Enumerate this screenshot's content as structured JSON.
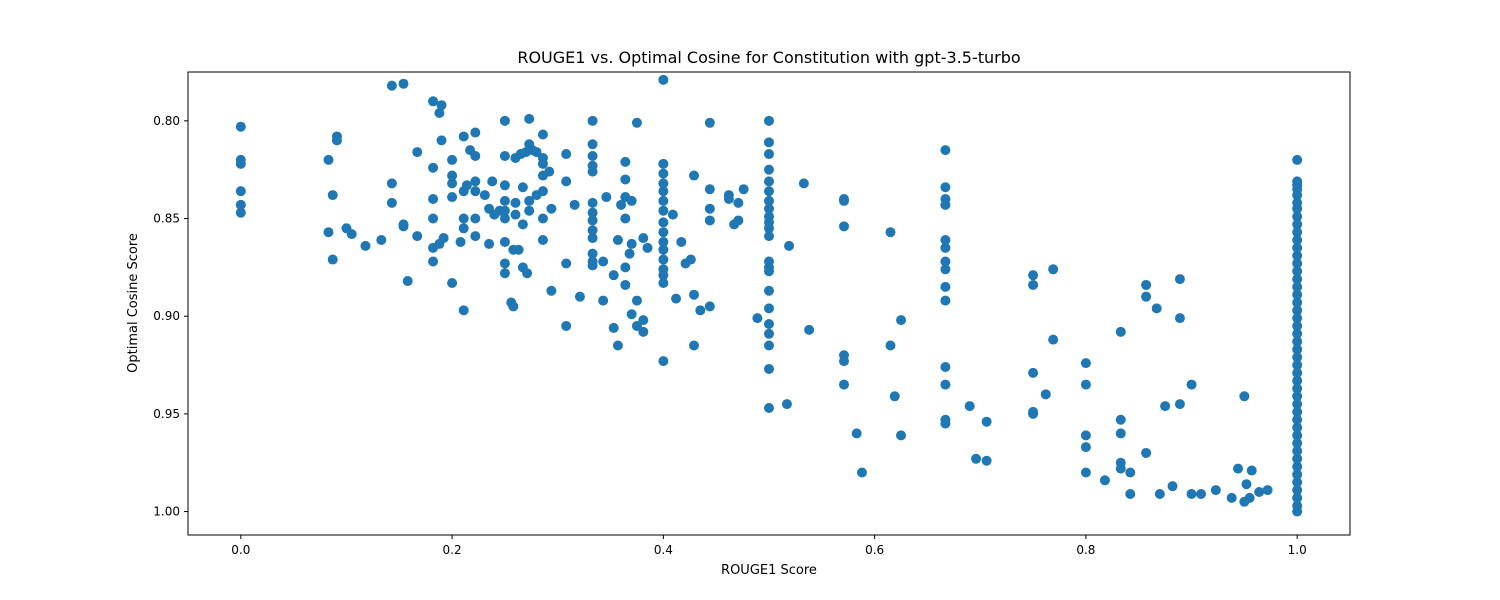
{
  "chart_data": {
    "type": "scatter",
    "title": "ROUGE1 vs. Optimal Cosine for Constitution with gpt-3.5-turbo",
    "xlabel": "ROUGE1 Score",
    "ylabel": "Optimal Cosine Score",
    "xlim": [
      -0.05,
      1.05
    ],
    "ylim": [
      0.775,
      1.012
    ],
    "y_inverted": true,
    "grid": false,
    "legend": "none",
    "marker_color": "#1f77b4",
    "xticks": [
      0.0,
      0.2,
      0.4,
      0.6,
      0.8,
      1.0
    ],
    "xtick_labels": [
      "0.0",
      "0.2",
      "0.4",
      "0.6",
      "0.8",
      "1.0"
    ],
    "yticks": [
      0.8,
      0.85,
      0.9,
      0.95,
      1.0
    ],
    "ytick_labels": [
      "0.80",
      "0.85",
      "0.90",
      "0.95",
      "1.00"
    ],
    "points": [
      {
        "x": 0.0,
        "y": 0.803
      },
      {
        "x": 0.0,
        "y": 0.82
      },
      {
        "x": 0.0,
        "y": 0.822
      },
      {
        "x": 0.0,
        "y": 0.836
      },
      {
        "x": 0.0,
        "y": 0.843
      },
      {
        "x": 0.0,
        "y": 0.847
      },
      {
        "x": 0.083,
        "y": 0.82
      },
      {
        "x": 0.083,
        "y": 0.857
      },
      {
        "x": 0.087,
        "y": 0.838
      },
      {
        "x": 0.087,
        "y": 0.871
      },
      {
        "x": 0.091,
        "y": 0.808
      },
      {
        "x": 0.091,
        "y": 0.81
      },
      {
        "x": 0.1,
        "y": 0.855
      },
      {
        "x": 0.105,
        "y": 0.858
      },
      {
        "x": 0.118,
        "y": 0.864
      },
      {
        "x": 0.133,
        "y": 0.861
      },
      {
        "x": 0.143,
        "y": 0.782
      },
      {
        "x": 0.143,
        "y": 0.832
      },
      {
        "x": 0.143,
        "y": 0.842
      },
      {
        "x": 0.154,
        "y": 0.781
      },
      {
        "x": 0.154,
        "y": 0.853
      },
      {
        "x": 0.154,
        "y": 0.854
      },
      {
        "x": 0.158,
        "y": 0.882
      },
      {
        "x": 0.167,
        "y": 0.816
      },
      {
        "x": 0.167,
        "y": 0.859
      },
      {
        "x": 0.182,
        "y": 0.79
      },
      {
        "x": 0.182,
        "y": 0.824
      },
      {
        "x": 0.182,
        "y": 0.84
      },
      {
        "x": 0.182,
        "y": 0.85
      },
      {
        "x": 0.182,
        "y": 0.865
      },
      {
        "x": 0.182,
        "y": 0.872
      },
      {
        "x": 0.188,
        "y": 0.796
      },
      {
        "x": 0.188,
        "y": 0.863
      },
      {
        "x": 0.19,
        "y": 0.792
      },
      {
        "x": 0.19,
        "y": 0.81
      },
      {
        "x": 0.192,
        "y": 0.86
      },
      {
        "x": 0.2,
        "y": 0.82
      },
      {
        "x": 0.2,
        "y": 0.828
      },
      {
        "x": 0.2,
        "y": 0.832
      },
      {
        "x": 0.2,
        "y": 0.839
      },
      {
        "x": 0.2,
        "y": 0.883
      },
      {
        "x": 0.208,
        "y": 0.862
      },
      {
        "x": 0.211,
        "y": 0.808
      },
      {
        "x": 0.211,
        "y": 0.836
      },
      {
        "x": 0.211,
        "y": 0.85
      },
      {
        "x": 0.211,
        "y": 0.855
      },
      {
        "x": 0.211,
        "y": 0.897
      },
      {
        "x": 0.214,
        "y": 0.833
      },
      {
        "x": 0.217,
        "y": 0.815
      },
      {
        "x": 0.222,
        "y": 0.806
      },
      {
        "x": 0.222,
        "y": 0.818
      },
      {
        "x": 0.222,
        "y": 0.831
      },
      {
        "x": 0.222,
        "y": 0.836
      },
      {
        "x": 0.222,
        "y": 0.85
      },
      {
        "x": 0.222,
        "y": 0.859
      },
      {
        "x": 0.231,
        "y": 0.838
      },
      {
        "x": 0.235,
        "y": 0.845
      },
      {
        "x": 0.235,
        "y": 0.863
      },
      {
        "x": 0.238,
        "y": 0.831
      },
      {
        "x": 0.24,
        "y": 0.848
      },
      {
        "x": 0.245,
        "y": 0.846
      },
      {
        "x": 0.25,
        "y": 0.8
      },
      {
        "x": 0.25,
        "y": 0.818
      },
      {
        "x": 0.25,
        "y": 0.833
      },
      {
        "x": 0.25,
        "y": 0.841
      },
      {
        "x": 0.25,
        "y": 0.846
      },
      {
        "x": 0.25,
        "y": 0.85
      },
      {
        "x": 0.25,
        "y": 0.862
      },
      {
        "x": 0.25,
        "y": 0.873
      },
      {
        "x": 0.25,
        "y": 0.878
      },
      {
        "x": 0.256,
        "y": 0.893
      },
      {
        "x": 0.258,
        "y": 0.895
      },
      {
        "x": 0.258,
        "y": 0.866
      },
      {
        "x": 0.26,
        "y": 0.819
      },
      {
        "x": 0.26,
        "y": 0.842
      },
      {
        "x": 0.26,
        "y": 0.848
      },
      {
        "x": 0.263,
        "y": 0.866
      },
      {
        "x": 0.265,
        "y": 0.817
      },
      {
        "x": 0.267,
        "y": 0.834
      },
      {
        "x": 0.267,
        "y": 0.853
      },
      {
        "x": 0.267,
        "y": 0.875
      },
      {
        "x": 0.27,
        "y": 0.816
      },
      {
        "x": 0.271,
        "y": 0.878
      },
      {
        "x": 0.273,
        "y": 0.799
      },
      {
        "x": 0.273,
        "y": 0.812
      },
      {
        "x": 0.273,
        "y": 0.841
      },
      {
        "x": 0.273,
        "y": 0.846
      },
      {
        "x": 0.276,
        "y": 0.815
      },
      {
        "x": 0.28,
        "y": 0.816
      },
      {
        "x": 0.28,
        "y": 0.838
      },
      {
        "x": 0.286,
        "y": 0.807
      },
      {
        "x": 0.286,
        "y": 0.819
      },
      {
        "x": 0.286,
        "y": 0.822
      },
      {
        "x": 0.286,
        "y": 0.828
      },
      {
        "x": 0.286,
        "y": 0.836
      },
      {
        "x": 0.286,
        "y": 0.85
      },
      {
        "x": 0.286,
        "y": 0.861
      },
      {
        "x": 0.292,
        "y": 0.826
      },
      {
        "x": 0.294,
        "y": 0.887
      },
      {
        "x": 0.294,
        "y": 0.845
      },
      {
        "x": 0.308,
        "y": 0.817
      },
      {
        "x": 0.308,
        "y": 0.831
      },
      {
        "x": 0.308,
        "y": 0.873
      },
      {
        "x": 0.308,
        "y": 0.905
      },
      {
        "x": 0.316,
        "y": 0.843
      },
      {
        "x": 0.321,
        "y": 0.89
      },
      {
        "x": 0.333,
        "y": 0.8
      },
      {
        "x": 0.333,
        "y": 0.812
      },
      {
        "x": 0.333,
        "y": 0.818
      },
      {
        "x": 0.333,
        "y": 0.823
      },
      {
        "x": 0.333,
        "y": 0.826
      },
      {
        "x": 0.333,
        "y": 0.842
      },
      {
        "x": 0.333,
        "y": 0.847
      },
      {
        "x": 0.333,
        "y": 0.851
      },
      {
        "x": 0.333,
        "y": 0.856
      },
      {
        "x": 0.333,
        "y": 0.86
      },
      {
        "x": 0.333,
        "y": 0.868
      },
      {
        "x": 0.333,
        "y": 0.872
      },
      {
        "x": 0.333,
        "y": 0.874
      },
      {
        "x": 0.343,
        "y": 0.892
      },
      {
        "x": 0.343,
        "y": 0.872
      },
      {
        "x": 0.346,
        "y": 0.839
      },
      {
        "x": 0.353,
        "y": 0.879
      },
      {
        "x": 0.353,
        "y": 0.906
      },
      {
        "x": 0.357,
        "y": 0.861
      },
      {
        "x": 0.357,
        "y": 0.915
      },
      {
        "x": 0.36,
        "y": 0.843
      },
      {
        "x": 0.364,
        "y": 0.821
      },
      {
        "x": 0.364,
        "y": 0.83
      },
      {
        "x": 0.364,
        "y": 0.839
      },
      {
        "x": 0.364,
        "y": 0.85
      },
      {
        "x": 0.364,
        "y": 0.875
      },
      {
        "x": 0.364,
        "y": 0.884
      },
      {
        "x": 0.368,
        "y": 0.868
      },
      {
        "x": 0.37,
        "y": 0.841
      },
      {
        "x": 0.37,
        "y": 0.863
      },
      {
        "x": 0.375,
        "y": 0.801
      },
      {
        "x": 0.375,
        "y": 0.892
      },
      {
        "x": 0.37,
        "y": 0.899
      },
      {
        "x": 0.375,
        "y": 0.905
      },
      {
        "x": 0.381,
        "y": 0.902
      },
      {
        "x": 0.381,
        "y": 0.908
      },
      {
        "x": 0.381,
        "y": 0.86
      },
      {
        "x": 0.385,
        "y": 0.865
      },
      {
        "x": 0.4,
        "y": 0.779
      },
      {
        "x": 0.4,
        "y": 0.822
      },
      {
        "x": 0.4,
        "y": 0.827
      },
      {
        "x": 0.4,
        "y": 0.832
      },
      {
        "x": 0.4,
        "y": 0.836
      },
      {
        "x": 0.4,
        "y": 0.841
      },
      {
        "x": 0.4,
        "y": 0.846
      },
      {
        "x": 0.4,
        "y": 0.852
      },
      {
        "x": 0.4,
        "y": 0.857
      },
      {
        "x": 0.4,
        "y": 0.862
      },
      {
        "x": 0.4,
        "y": 0.866
      },
      {
        "x": 0.4,
        "y": 0.871
      },
      {
        "x": 0.4,
        "y": 0.876
      },
      {
        "x": 0.4,
        "y": 0.879
      },
      {
        "x": 0.4,
        "y": 0.883
      },
      {
        "x": 0.4,
        "y": 0.923
      },
      {
        "x": 0.409,
        "y": 0.848
      },
      {
        "x": 0.412,
        "y": 0.891
      },
      {
        "x": 0.417,
        "y": 0.862
      },
      {
        "x": 0.421,
        "y": 0.873
      },
      {
        "x": 0.426,
        "y": 0.871
      },
      {
        "x": 0.429,
        "y": 0.828
      },
      {
        "x": 0.429,
        "y": 0.889
      },
      {
        "x": 0.429,
        "y": 0.915
      },
      {
        "x": 0.435,
        "y": 0.897
      },
      {
        "x": 0.444,
        "y": 0.801
      },
      {
        "x": 0.444,
        "y": 0.835
      },
      {
        "x": 0.444,
        "y": 0.845
      },
      {
        "x": 0.444,
        "y": 0.851
      },
      {
        "x": 0.444,
        "y": 0.895
      },
      {
        "x": 0.462,
        "y": 0.838
      },
      {
        "x": 0.462,
        "y": 0.84
      },
      {
        "x": 0.467,
        "y": 0.853
      },
      {
        "x": 0.471,
        "y": 0.851
      },
      {
        "x": 0.471,
        "y": 0.842
      },
      {
        "x": 0.476,
        "y": 0.835
      },
      {
        "x": 0.489,
        "y": 0.901
      },
      {
        "x": 0.5,
        "y": 0.8
      },
      {
        "x": 0.5,
        "y": 0.811
      },
      {
        "x": 0.5,
        "y": 0.817
      },
      {
        "x": 0.5,
        "y": 0.825
      },
      {
        "x": 0.5,
        "y": 0.831
      },
      {
        "x": 0.5,
        "y": 0.836
      },
      {
        "x": 0.5,
        "y": 0.841
      },
      {
        "x": 0.5,
        "y": 0.845
      },
      {
        "x": 0.5,
        "y": 0.849
      },
      {
        "x": 0.5,
        "y": 0.852
      },
      {
        "x": 0.5,
        "y": 0.855
      },
      {
        "x": 0.5,
        "y": 0.859
      },
      {
        "x": 0.5,
        "y": 0.872
      },
      {
        "x": 0.5,
        "y": 0.875
      },
      {
        "x": 0.5,
        "y": 0.877
      },
      {
        "x": 0.5,
        "y": 0.887
      },
      {
        "x": 0.5,
        "y": 0.896
      },
      {
        "x": 0.5,
        "y": 0.904
      },
      {
        "x": 0.5,
        "y": 0.909
      },
      {
        "x": 0.5,
        "y": 0.915
      },
      {
        "x": 0.5,
        "y": 0.927
      },
      {
        "x": 0.5,
        "y": 0.947
      },
      {
        "x": 0.517,
        "y": 0.945
      },
      {
        "x": 0.519,
        "y": 0.864
      },
      {
        "x": 0.533,
        "y": 0.832
      },
      {
        "x": 0.538,
        "y": 0.907
      },
      {
        "x": 0.571,
        "y": 0.84
      },
      {
        "x": 0.571,
        "y": 0.841
      },
      {
        "x": 0.571,
        "y": 0.854
      },
      {
        "x": 0.571,
        "y": 0.92
      },
      {
        "x": 0.571,
        "y": 0.923
      },
      {
        "x": 0.571,
        "y": 0.935
      },
      {
        "x": 0.583,
        "y": 0.96
      },
      {
        "x": 0.588,
        "y": 0.98
      },
      {
        "x": 0.615,
        "y": 0.857
      },
      {
        "x": 0.615,
        "y": 0.915
      },
      {
        "x": 0.619,
        "y": 0.941
      },
      {
        "x": 0.625,
        "y": 0.902
      },
      {
        "x": 0.625,
        "y": 0.961
      },
      {
        "x": 0.667,
        "y": 0.815
      },
      {
        "x": 0.667,
        "y": 0.834
      },
      {
        "x": 0.667,
        "y": 0.84
      },
      {
        "x": 0.667,
        "y": 0.843
      },
      {
        "x": 0.667,
        "y": 0.861
      },
      {
        "x": 0.667,
        "y": 0.865
      },
      {
        "x": 0.667,
        "y": 0.872
      },
      {
        "x": 0.667,
        "y": 0.876
      },
      {
        "x": 0.667,
        "y": 0.885
      },
      {
        "x": 0.667,
        "y": 0.892
      },
      {
        "x": 0.667,
        "y": 0.926
      },
      {
        "x": 0.667,
        "y": 0.935
      },
      {
        "x": 0.667,
        "y": 0.953
      },
      {
        "x": 0.667,
        "y": 0.955
      },
      {
        "x": 0.69,
        "y": 0.946
      },
      {
        "x": 0.696,
        "y": 0.973
      },
      {
        "x": 0.706,
        "y": 0.974
      },
      {
        "x": 0.706,
        "y": 0.954
      },
      {
        "x": 0.75,
        "y": 0.879
      },
      {
        "x": 0.75,
        "y": 0.884
      },
      {
        "x": 0.75,
        "y": 0.929
      },
      {
        "x": 0.75,
        "y": 0.949
      },
      {
        "x": 0.75,
        "y": 0.95
      },
      {
        "x": 0.762,
        "y": 0.94
      },
      {
        "x": 0.769,
        "y": 0.876
      },
      {
        "x": 0.769,
        "y": 0.912
      },
      {
        "x": 0.8,
        "y": 0.924
      },
      {
        "x": 0.8,
        "y": 0.935
      },
      {
        "x": 0.8,
        "y": 0.961
      },
      {
        "x": 0.8,
        "y": 0.967
      },
      {
        "x": 0.8,
        "y": 0.98
      },
      {
        "x": 0.818,
        "y": 0.984
      },
      {
        "x": 0.833,
        "y": 0.908
      },
      {
        "x": 0.833,
        "y": 0.953
      },
      {
        "x": 0.833,
        "y": 0.96
      },
      {
        "x": 0.833,
        "y": 0.975
      },
      {
        "x": 0.833,
        "y": 0.978
      },
      {
        "x": 0.842,
        "y": 0.98
      },
      {
        "x": 0.842,
        "y": 0.991
      },
      {
        "x": 0.857,
        "y": 0.884
      },
      {
        "x": 0.857,
        "y": 0.89
      },
      {
        "x": 0.857,
        "y": 0.97
      },
      {
        "x": 0.867,
        "y": 0.896
      },
      {
        "x": 0.87,
        "y": 0.991
      },
      {
        "x": 0.875,
        "y": 0.946
      },
      {
        "x": 0.882,
        "y": 0.987
      },
      {
        "x": 0.889,
        "y": 0.881
      },
      {
        "x": 0.889,
        "y": 0.901
      },
      {
        "x": 0.889,
        "y": 0.945
      },
      {
        "x": 0.9,
        "y": 0.935
      },
      {
        "x": 0.9,
        "y": 0.991
      },
      {
        "x": 0.909,
        "y": 0.991
      },
      {
        "x": 0.923,
        "y": 0.989
      },
      {
        "x": 0.938,
        "y": 0.993
      },
      {
        "x": 0.944,
        "y": 0.978
      },
      {
        "x": 0.95,
        "y": 0.941
      },
      {
        "x": 0.95,
        "y": 0.995
      },
      {
        "x": 0.952,
        "y": 0.986
      },
      {
        "x": 0.955,
        "y": 0.993
      },
      {
        "x": 0.957,
        "y": 0.979
      },
      {
        "x": 0.964,
        "y": 0.99
      },
      {
        "x": 0.972,
        "y": 0.989
      },
      {
        "x": 1.0,
        "y": 0.82
      },
      {
        "x": 1.0,
        "y": 0.831
      },
      {
        "x": 1.0,
        "y": 0.833
      },
      {
        "x": 1.0,
        "y": 0.835
      },
      {
        "x": 1.0,
        "y": 0.838
      },
      {
        "x": 1.0,
        "y": 0.842
      },
      {
        "x": 1.0,
        "y": 0.845
      },
      {
        "x": 1.0,
        "y": 0.849
      },
      {
        "x": 1.0,
        "y": 0.853
      },
      {
        "x": 1.0,
        "y": 0.857
      },
      {
        "x": 1.0,
        "y": 0.861
      },
      {
        "x": 1.0,
        "y": 0.865
      },
      {
        "x": 1.0,
        "y": 0.869
      },
      {
        "x": 1.0,
        "y": 0.873
      },
      {
        "x": 1.0,
        "y": 0.877
      },
      {
        "x": 1.0,
        "y": 0.881
      },
      {
        "x": 1.0,
        "y": 0.885
      },
      {
        "x": 1.0,
        "y": 0.889
      },
      {
        "x": 1.0,
        "y": 0.893
      },
      {
        "x": 1.0,
        "y": 0.897
      },
      {
        "x": 1.0,
        "y": 0.901
      },
      {
        "x": 1.0,
        "y": 0.905
      },
      {
        "x": 1.0,
        "y": 0.909
      },
      {
        "x": 1.0,
        "y": 0.913
      },
      {
        "x": 1.0,
        "y": 0.917
      },
      {
        "x": 1.0,
        "y": 0.921
      },
      {
        "x": 1.0,
        "y": 0.925
      },
      {
        "x": 1.0,
        "y": 0.929
      },
      {
        "x": 1.0,
        "y": 0.933
      },
      {
        "x": 1.0,
        "y": 0.937
      },
      {
        "x": 1.0,
        "y": 0.941
      },
      {
        "x": 1.0,
        "y": 0.945
      },
      {
        "x": 1.0,
        "y": 0.949
      },
      {
        "x": 1.0,
        "y": 0.953
      },
      {
        "x": 1.0,
        "y": 0.957
      },
      {
        "x": 1.0,
        "y": 0.961
      },
      {
        "x": 1.0,
        "y": 0.965
      },
      {
        "x": 1.0,
        "y": 0.969
      },
      {
        "x": 1.0,
        "y": 0.973
      },
      {
        "x": 1.0,
        "y": 0.977
      },
      {
        "x": 1.0,
        "y": 0.981
      },
      {
        "x": 1.0,
        "y": 0.985
      },
      {
        "x": 1.0,
        "y": 0.989
      },
      {
        "x": 1.0,
        "y": 0.993
      },
      {
        "x": 1.0,
        "y": 0.997
      },
      {
        "x": 1.0,
        "y": 1.0
      }
    ]
  }
}
